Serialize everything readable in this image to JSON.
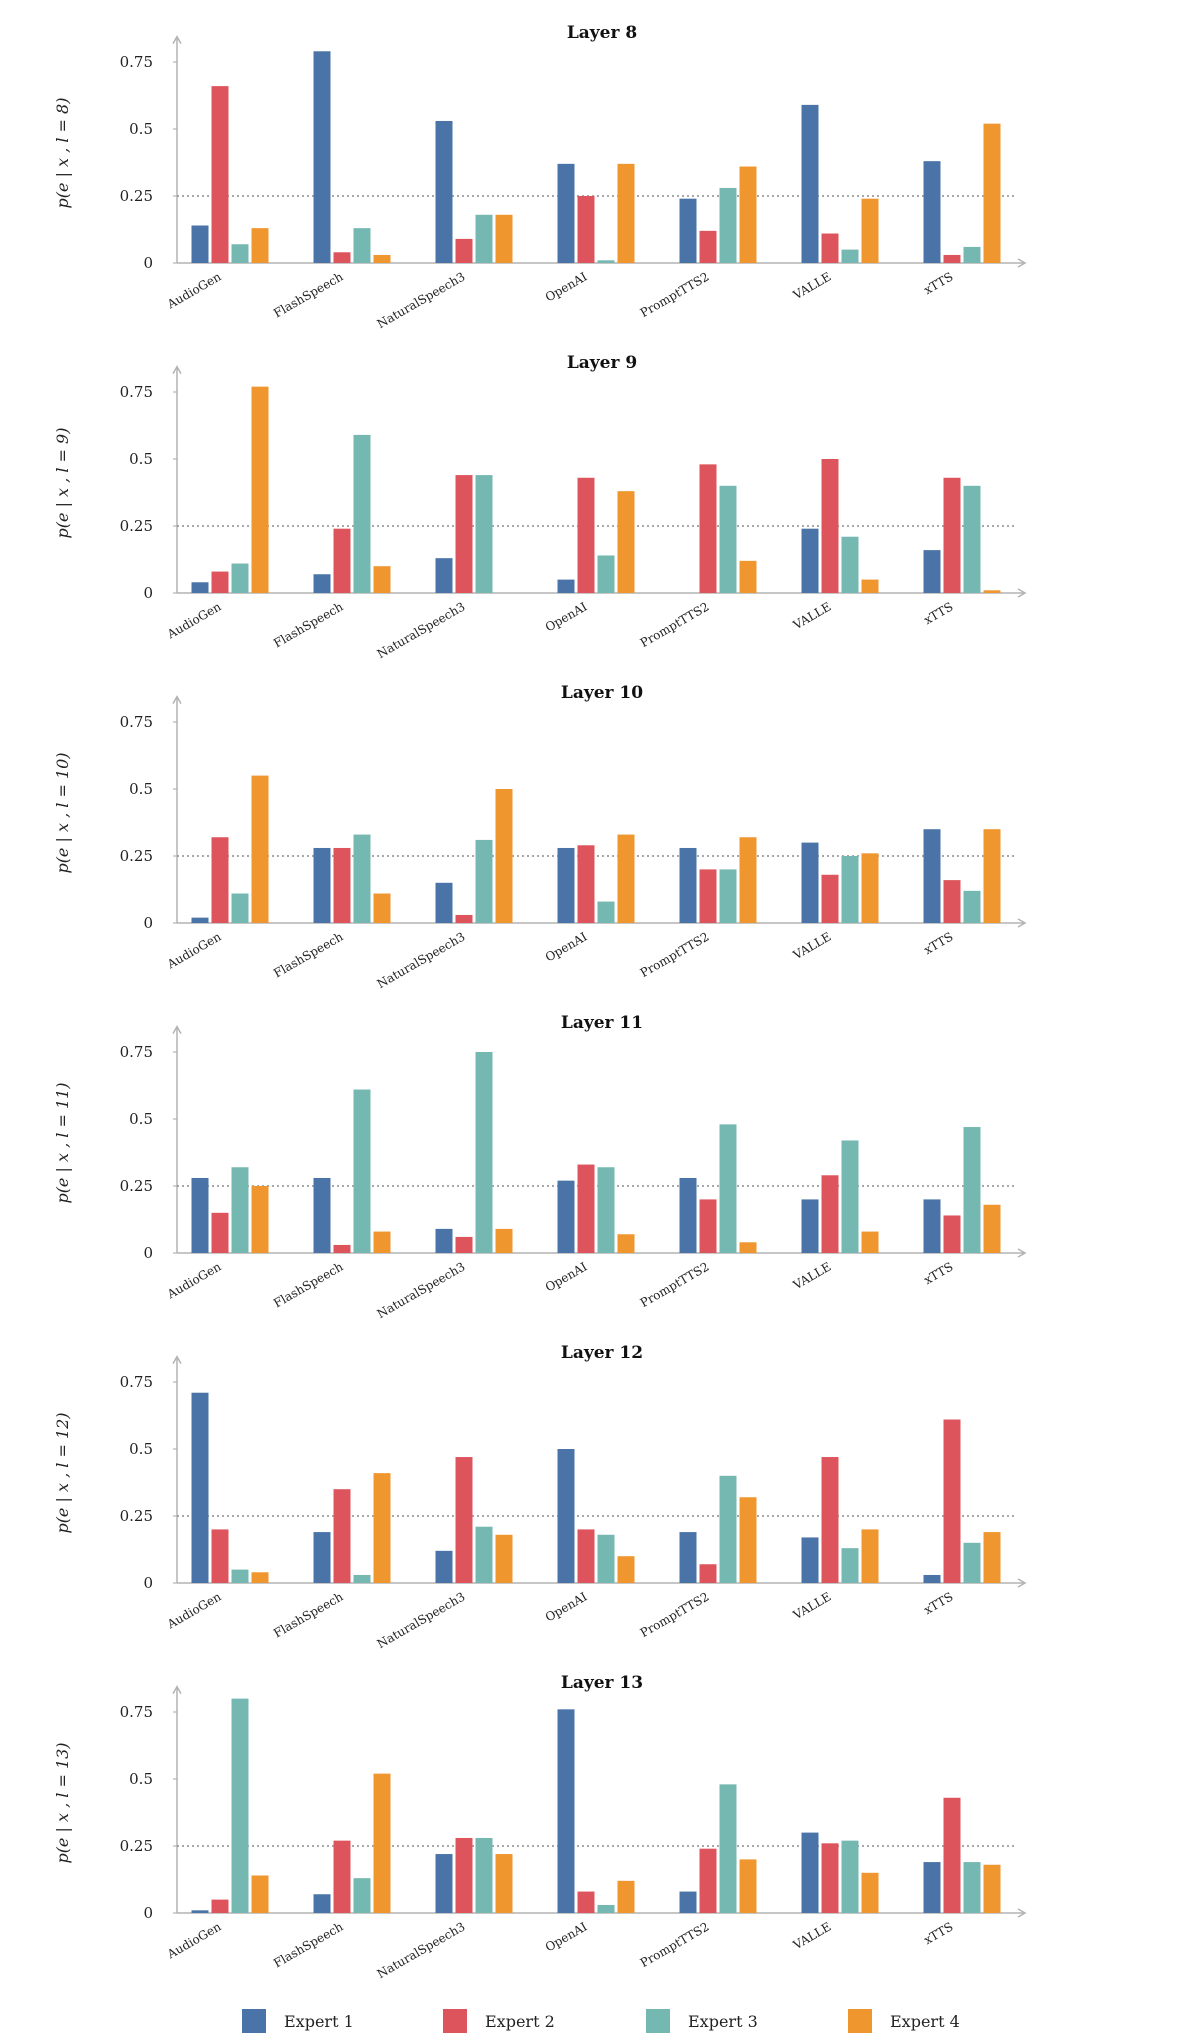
{
  "chart_data": [
    {
      "type": "bar",
      "title": "Layer 8",
      "ylabel": "p(e | x , l = 8)",
      "ylim": [
        0,
        0.8
      ],
      "yticks": [
        "0",
        "0.25",
        "0.5",
        "0.75"
      ],
      "reference_line": 0.25,
      "categories": [
        "AudioGen",
        "FlashSpeech",
        "NaturalSpeech3",
        "OpenAI",
        "PromptTTS2",
        "VALLE",
        "xTTS"
      ],
      "series": [
        {
          "name": "Expert 1",
          "values": [
            0.14,
            0.79,
            0.53,
            0.37,
            0.24,
            0.59,
            0.38
          ]
        },
        {
          "name": "Expert 2",
          "values": [
            0.66,
            0.04,
            0.09,
            0.25,
            0.12,
            0.11,
            0.03
          ]
        },
        {
          "name": "Expert 3",
          "values": [
            0.07,
            0.13,
            0.18,
            0.01,
            0.28,
            0.05,
            0.06
          ]
        },
        {
          "name": "Expert 4",
          "values": [
            0.13,
            0.03,
            0.18,
            0.37,
            0.36,
            0.24,
            0.52
          ]
        }
      ]
    },
    {
      "type": "bar",
      "title": "Layer 9",
      "ylabel": "p(e | x , l = 9)",
      "ylim": [
        0,
        0.8
      ],
      "yticks": [
        "0",
        "0.25",
        "0.5",
        "0.75"
      ],
      "reference_line": 0.25,
      "categories": [
        "AudioGen",
        "FlashSpeech",
        "NaturalSpeech3",
        "OpenAI",
        "PromptTTS2",
        "VALLE",
        "xTTS"
      ],
      "series": [
        {
          "name": "Expert 1",
          "values": [
            0.04,
            0.07,
            0.13,
            0.05,
            0.0,
            0.24,
            0.16
          ]
        },
        {
          "name": "Expert 2",
          "values": [
            0.08,
            0.24,
            0.44,
            0.43,
            0.48,
            0.5,
            0.43
          ]
        },
        {
          "name": "Expert 3",
          "values": [
            0.11,
            0.59,
            0.44,
            0.14,
            0.4,
            0.21,
            0.4
          ]
        },
        {
          "name": "Expert 4",
          "values": [
            0.77,
            0.1,
            0.0,
            0.38,
            0.12,
            0.05,
            0.01
          ]
        }
      ]
    },
    {
      "type": "bar",
      "title": "Layer 10",
      "ylabel": "p(e | x , l = 10)",
      "ylim": [
        0,
        0.8
      ],
      "yticks": [
        "0",
        "0.25",
        "0.5",
        "0.75"
      ],
      "reference_line": 0.25,
      "categories": [
        "AudioGen",
        "FlashSpeech",
        "NaturalSpeech3",
        "OpenAI",
        "PromptTTS2",
        "VALLE",
        "xTTS"
      ],
      "series": [
        {
          "name": "Expert 1",
          "values": [
            0.02,
            0.28,
            0.15,
            0.28,
            0.28,
            0.3,
            0.35
          ]
        },
        {
          "name": "Expert 2",
          "values": [
            0.32,
            0.28,
            0.03,
            0.29,
            0.2,
            0.18,
            0.16
          ]
        },
        {
          "name": "Expert 3",
          "values": [
            0.11,
            0.33,
            0.31,
            0.08,
            0.2,
            0.25,
            0.12
          ]
        },
        {
          "name": "Expert 4",
          "values": [
            0.55,
            0.11,
            0.5,
            0.33,
            0.32,
            0.26,
            0.35
          ]
        }
      ]
    },
    {
      "type": "bar",
      "title": "Layer 11",
      "ylabel": "p(e | x , l = 11)",
      "ylim": [
        0,
        0.8
      ],
      "yticks": [
        "0",
        "0.25",
        "0.5",
        "0.75"
      ],
      "reference_line": 0.25,
      "categories": [
        "AudioGen",
        "FlashSpeech",
        "NaturalSpeech3",
        "OpenAI",
        "PromptTTS2",
        "VALLE",
        "xTTS"
      ],
      "series": [
        {
          "name": "Expert 1",
          "values": [
            0.28,
            0.28,
            0.09,
            0.27,
            0.28,
            0.2,
            0.2
          ]
        },
        {
          "name": "Expert 2",
          "values": [
            0.15,
            0.03,
            0.06,
            0.33,
            0.2,
            0.29,
            0.14
          ]
        },
        {
          "name": "Expert 3",
          "values": [
            0.32,
            0.61,
            0.75,
            0.32,
            0.48,
            0.42,
            0.47
          ]
        },
        {
          "name": "Expert 4",
          "values": [
            0.25,
            0.08,
            0.09,
            0.07,
            0.04,
            0.08,
            0.18
          ]
        }
      ]
    },
    {
      "type": "bar",
      "title": "Layer 12",
      "ylabel": "p(e | x , l = 12)",
      "ylim": [
        0,
        0.8
      ],
      "yticks": [
        "0",
        "0.25",
        "0.5",
        "0.75"
      ],
      "reference_line": 0.25,
      "categories": [
        "AudioGen",
        "FlashSpeech",
        "NaturalSpeech3",
        "OpenAI",
        "PromptTTS2",
        "VALLE",
        "xTTS"
      ],
      "series": [
        {
          "name": "Expert 1",
          "values": [
            0.71,
            0.19,
            0.12,
            0.5,
            0.19,
            0.17,
            0.03
          ]
        },
        {
          "name": "Expert 2",
          "values": [
            0.2,
            0.35,
            0.47,
            0.2,
            0.07,
            0.47,
            0.61
          ]
        },
        {
          "name": "Expert 3",
          "values": [
            0.05,
            0.03,
            0.21,
            0.18,
            0.4,
            0.13,
            0.15
          ]
        },
        {
          "name": "Expert 4",
          "values": [
            0.04,
            0.41,
            0.18,
            0.1,
            0.32,
            0.2,
            0.19
          ]
        }
      ]
    },
    {
      "type": "bar",
      "title": "Layer 13",
      "ylabel": "p(e | x , l = 13)",
      "ylim": [
        0,
        0.8
      ],
      "yticks": [
        "0",
        "0.25",
        "0.5",
        "0.75"
      ],
      "reference_line": 0.25,
      "categories": [
        "AudioGen",
        "FlashSpeech",
        "NaturalSpeech3",
        "OpenAI",
        "PromptTTS2",
        "VALLE",
        "xTTS"
      ],
      "series": [
        {
          "name": "Expert 1",
          "values": [
            0.01,
            0.07,
            0.22,
            0.76,
            0.08,
            0.3,
            0.19
          ]
        },
        {
          "name": "Expert 2",
          "values": [
            0.05,
            0.27,
            0.28,
            0.08,
            0.24,
            0.26,
            0.43
          ]
        },
        {
          "name": "Expert 3",
          "values": [
            0.8,
            0.13,
            0.28,
            0.03,
            0.48,
            0.27,
            0.19
          ]
        },
        {
          "name": "Expert 4",
          "values": [
            0.14,
            0.52,
            0.22,
            0.12,
            0.2,
            0.15,
            0.18
          ]
        }
      ]
    }
  ],
  "legend": {
    "items": [
      {
        "label": "Expert 1",
        "color": "#4a74a8"
      },
      {
        "label": "Expert 2",
        "color": "#de545d"
      },
      {
        "label": "Expert 3",
        "color": "#75b8b1"
      },
      {
        "label": "Expert 4",
        "color": "#f0962f"
      }
    ]
  },
  "colors": {
    "expert_1": "#4a74a8",
    "expert_2": "#de545d",
    "expert_3": "#75b8b1",
    "expert_4": "#f0962f",
    "axis": "#b3b3b3",
    "reference_line": "#8c8c8c"
  }
}
